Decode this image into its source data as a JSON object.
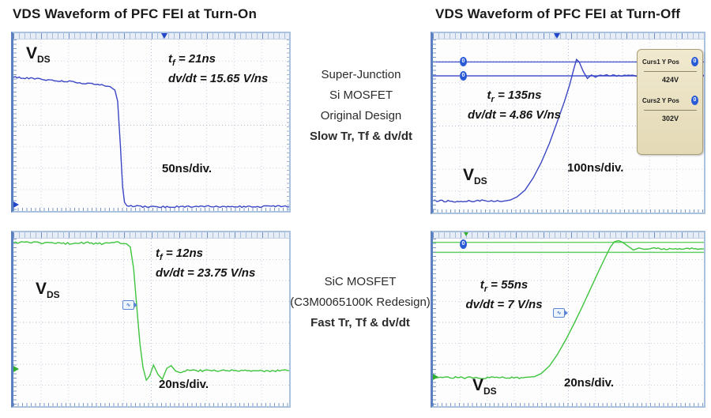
{
  "titles": {
    "turn_on": "VDS Waveform of PFC FEI at Turn-On",
    "turn_off": "VDS Waveform of PFC FEI at Turn-Off"
  },
  "center_labels": {
    "top": {
      "line1": "Super-Junction",
      "line2": "Si MOSFET",
      "line3": "Original Design",
      "line4_bold": "Slow Tr, Tf & dv/dt"
    },
    "bottom": {
      "line1": "SiC MOSFET",
      "line2": "(C3M0065100K Redesign)",
      "line3_bold": "Fast Tr, Tf & dv/dt"
    }
  },
  "plots": {
    "turn_on_si": {
      "vds": "V",
      "vds_sub": "DS",
      "t_sym": "t",
      "t_sub": "f",
      "t_val": "= 21ns",
      "dvdt": "dv/dt = 15.65 V/ns",
      "timebase": "50ns/div."
    },
    "turn_off_si": {
      "vds": "V",
      "vds_sub": "DS",
      "t_sym": "t",
      "t_sub": "r",
      "t_val": "= 135ns",
      "dvdt": "dv/dt = 4.86 V/ns",
      "timebase": "100ns/div."
    },
    "turn_on_sic": {
      "vds": "V",
      "vds_sub": "DS",
      "t_sym": "t",
      "t_sub": "f",
      "t_val": "= 12ns",
      "dvdt": "dv/dt = 23.75 V/ns",
      "timebase": "20ns/div."
    },
    "turn_off_sic": {
      "vds": "V",
      "vds_sub": "DS",
      "t_sym": "t",
      "t_sub": "r",
      "t_val": "= 55ns",
      "dvdt": "dv/dt = 7 V/ns",
      "timebase": "20ns/div."
    }
  },
  "cursor_panel": {
    "cursor1_label": "Curs1 Y Pos",
    "cursor1_value": "424V",
    "cursor2_label": "Curs2 Y Pos",
    "cursor2_value": "302V",
    "knob_glyph": "0"
  },
  "markers": {
    "handle_glyph": "0",
    "left_arrow_glyph": "←",
    "edge_badge_glyph": "∿"
  },
  "colors": {
    "blue_trace": "#3a46c4",
    "green_trace": "#3fc43f",
    "frame": "#abc2de",
    "panel_bg": "#ece2c2"
  },
  "chart_data": [
    {
      "type": "line",
      "id": "si-turn-on",
      "title": "Super-Junction Si MOSFET VDS at turn-on",
      "signal": "VDS",
      "timebase": "50ns/div",
      "measurements": {
        "tf_ns": 21,
        "dv_dt_V_per_ns": 15.65
      },
      "trace_color": "#3a46c4",
      "seed": 7,
      "cursor_lines_pct": [],
      "points_pct": [
        [
          0,
          22
        ],
        [
          7,
          22.8,
          0.5
        ],
        [
          14,
          23.6,
          0.5
        ],
        [
          21,
          24.6,
          0.5
        ],
        [
          27,
          25.6,
          0.5
        ],
        [
          32,
          26.6,
          0.5
        ],
        [
          35,
          27.6,
          0.4
        ],
        [
          36.8,
          29.5
        ],
        [
          37.8,
          36
        ],
        [
          38.8,
          62
        ],
        [
          39.6,
          86
        ],
        [
          40.3,
          95
        ],
        [
          41.2,
          97
        ],
        [
          44,
          97.3,
          0.4
        ],
        [
          55,
          97.6,
          0.5
        ],
        [
          70,
          97.2,
          0.5
        ],
        [
          85,
          97.6,
          0.5
        ],
        [
          100,
          97.3,
          0.5
        ]
      ]
    },
    {
      "type": "line",
      "id": "si-turn-off",
      "title": "Super-Junction Si MOSFET VDS at turn-off",
      "signal": "VDS",
      "timebase": "100ns/div",
      "measurements": {
        "tr_ns": 135,
        "dv_dt_V_per_ns": 4.86,
        "cursor1_V": 424,
        "cursor2_V": 302
      },
      "trace_color": "#3a46c4",
      "seed": 11,
      "cursor_lines_pct": [
        {
          "y": 13,
          "color": "#4a5ace"
        },
        {
          "y": 21,
          "color": "#4a5ace"
        }
      ],
      "points_pct": [
        [
          0,
          93.2
        ],
        [
          9,
          93.5,
          0.5
        ],
        [
          18,
          93.1,
          0.5
        ],
        [
          26,
          93.4,
          0.4
        ],
        [
          28.5,
          92.8
        ],
        [
          31,
          91
        ],
        [
          34,
          87
        ],
        [
          37,
          80
        ],
        [
          40,
          71
        ],
        [
          43,
          60
        ],
        [
          46,
          47
        ],
        [
          48.5,
          36
        ],
        [
          50.5,
          26
        ],
        [
          52,
          17
        ],
        [
          53,
          11.5
        ],
        [
          54,
          13
        ],
        [
          55.5,
          18.5
        ],
        [
          57,
          22.5
        ],
        [
          58.5,
          20.5
        ],
        [
          60,
          21.8
        ],
        [
          62,
          20.6,
          0.4
        ],
        [
          70,
          21,
          0.5
        ],
        [
          80,
          20.6,
          0.5
        ],
        [
          90,
          21,
          0.5
        ],
        [
          100,
          20.7,
          0.4
        ]
      ]
    },
    {
      "type": "line",
      "id": "sic-turn-on",
      "title": "SiC MOSFET C3M0065100K VDS at turn-on",
      "signal": "VDS",
      "timebase": "20ns/div",
      "measurements": {
        "tf_ns": 12,
        "dv_dt_V_per_ns": 23.75
      },
      "trace_color": "#3fc43f",
      "seed": 23,
      "cursor_lines_pct": [],
      "points_pct": [
        [
          0,
          2.6
        ],
        [
          8,
          2.2,
          0.7
        ],
        [
          16,
          3,
          0.7
        ],
        [
          24,
          2.3,
          0.7
        ],
        [
          32,
          2.9,
          0.7
        ],
        [
          38,
          2.4,
          0.6
        ],
        [
          41,
          3,
          0.4
        ],
        [
          42.4,
          5
        ],
        [
          43.6,
          18
        ],
        [
          44.8,
          42
        ],
        [
          45.9,
          63
        ],
        [
          47,
          77
        ],
        [
          48.2,
          84.5
        ],
        [
          49.4,
          82
        ],
        [
          50.8,
          75.5
        ],
        [
          52.4,
          81
        ],
        [
          54,
          84
        ],
        [
          55.6,
          77.5
        ],
        [
          57.2,
          75.8
        ],
        [
          58.8,
          79
        ],
        [
          60.5,
          80
        ],
        [
          63,
          78.6,
          0.6
        ],
        [
          72,
          79,
          0.6
        ],
        [
          82,
          78.5,
          0.6
        ],
        [
          91,
          79,
          0.6
        ],
        [
          100,
          78.6,
          0.6
        ]
      ]
    },
    {
      "type": "line",
      "id": "sic-turn-off",
      "title": "SiC MOSFET C3M0065100K VDS at turn-off",
      "signal": "VDS",
      "timebase": "20ns/div",
      "measurements": {
        "tr_ns": 55,
        "dv_dt_V_per_ns": 7
      },
      "trace_color": "#3fc43f",
      "seed": 31,
      "cursor_lines_pct": [
        {
          "y": 2.2,
          "color": "#63cf63"
        },
        {
          "y": 8.2,
          "color": "#63cf63"
        }
      ],
      "points_pct": [
        [
          0,
          83.2
        ],
        [
          9,
          82.8,
          0.6
        ],
        [
          18,
          83.3,
          0.6
        ],
        [
          27,
          82.9,
          0.6
        ],
        [
          34,
          83.2,
          0.5
        ],
        [
          37.5,
          82.4
        ],
        [
          40,
          80.5
        ],
        [
          43,
          76
        ],
        [
          46,
          69
        ],
        [
          49,
          60.5
        ],
        [
          52,
          51
        ],
        [
          55,
          41
        ],
        [
          58,
          30.5
        ],
        [
          61,
          20
        ],
        [
          63.5,
          11.5
        ],
        [
          65.5,
          5
        ],
        [
          67,
          1.8
        ],
        [
          68.5,
          1.2
        ],
        [
          70,
          2.2
        ],
        [
          72,
          4.5
        ],
        [
          74,
          6.8
        ],
        [
          76,
          5.6
        ],
        [
          78,
          6.4
        ],
        [
          81,
          5.8,
          0.5
        ],
        [
          88,
          6.3,
          0.5
        ],
        [
          94,
          5.8,
          0.5
        ],
        [
          100,
          6.2,
          0.5
        ]
      ]
    }
  ]
}
